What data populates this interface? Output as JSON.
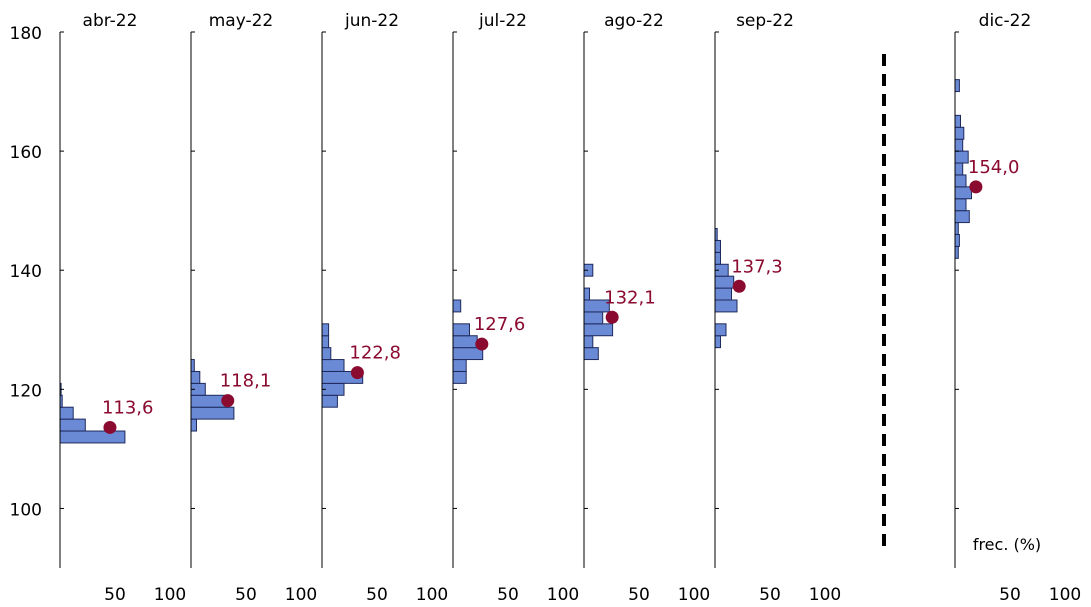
{
  "chart_data": {
    "type": "bar",
    "orientation": "horizontal",
    "y_axis": {
      "ylim": [
        90,
        180
      ],
      "ticks": [
        100,
        120,
        140,
        160,
        180
      ]
    },
    "x_axis": {
      "xlim": [
        0,
        100
      ],
      "ticks": [
        50,
        100
      ],
      "label": "frec. (%)"
    },
    "separator_before_panel": 6,
    "colors": {
      "bar_fill": "#6A8AD6",
      "bar_edge": "#1F2A5C",
      "marker": "#8B0A2F",
      "value_label": "#8B0A2F",
      "axis": "#000000",
      "separator": "#000000"
    },
    "panels": [
      {
        "title": "abr-22",
        "value": 113.6,
        "value_label": "113,6",
        "bars": [
          {
            "y0": 111,
            "y1": 113,
            "freq": 59
          },
          {
            "y0": 113,
            "y1": 115,
            "freq": 23
          },
          {
            "y0": 115,
            "y1": 117,
            "freq": 12
          },
          {
            "y0": 117,
            "y1": 119,
            "freq": 2
          },
          {
            "y0": 119,
            "y1": 121,
            "freq": 1
          }
        ]
      },
      {
        "title": "may-22",
        "value": 118.1,
        "value_label": "118,1",
        "bars": [
          {
            "y0": 113,
            "y1": 115,
            "freq": 5
          },
          {
            "y0": 115,
            "y1": 117,
            "freq": 39
          },
          {
            "y0": 117,
            "y1": 119,
            "freq": 34
          },
          {
            "y0": 119,
            "y1": 121,
            "freq": 13
          },
          {
            "y0": 121,
            "y1": 123,
            "freq": 8
          },
          {
            "y0": 123,
            "y1": 125,
            "freq": 3
          }
        ]
      },
      {
        "title": "jun-22",
        "value": 122.8,
        "value_label": "122,8",
        "bars": [
          {
            "y0": 117,
            "y1": 119,
            "freq": 14
          },
          {
            "y0": 119,
            "y1": 121,
            "freq": 20
          },
          {
            "y0": 121,
            "y1": 123,
            "freq": 37
          },
          {
            "y0": 123,
            "y1": 125,
            "freq": 20
          },
          {
            "y0": 125,
            "y1": 127,
            "freq": 8
          },
          {
            "y0": 127,
            "y1": 129,
            "freq": 6
          },
          {
            "y0": 129,
            "y1": 131,
            "freq": 6
          }
        ]
      },
      {
        "title": "jul-22",
        "value": 127.6,
        "value_label": "127,6",
        "bars": [
          {
            "y0": 121,
            "y1": 123,
            "freq": 12
          },
          {
            "y0": 123,
            "y1": 125,
            "freq": 12
          },
          {
            "y0": 125,
            "y1": 127,
            "freq": 27
          },
          {
            "y0": 127,
            "y1": 129,
            "freq": 22
          },
          {
            "y0": 129,
            "y1": 131,
            "freq": 15
          },
          {
            "y0": 131,
            "y1": 133,
            "freq": 0
          },
          {
            "y0": 133,
            "y1": 135,
            "freq": 7
          }
        ]
      },
      {
        "title": "ago-22",
        "value": 132.1,
        "value_label": "132,1",
        "bars": [
          {
            "y0": 125,
            "y1": 127,
            "freq": 13
          },
          {
            "y0": 127,
            "y1": 129,
            "freq": 8
          },
          {
            "y0": 129,
            "y1": 131,
            "freq": 26
          },
          {
            "y0": 131,
            "y1": 133,
            "freq": 17
          },
          {
            "y0": 133,
            "y1": 135,
            "freq": 23
          },
          {
            "y0": 135,
            "y1": 137,
            "freq": 5
          },
          {
            "y0": 137,
            "y1": 139,
            "freq": 0
          },
          {
            "y0": 139,
            "y1": 141,
            "freq": 8
          }
        ]
      },
      {
        "title": "sep-22",
        "value": 137.3,
        "value_label": "137,3",
        "bars": [
          {
            "y0": 127,
            "y1": 129,
            "freq": 5
          },
          {
            "y0": 129,
            "y1": 131,
            "freq": 10
          },
          {
            "y0": 131,
            "y1": 133,
            "freq": 0
          },
          {
            "y0": 133,
            "y1": 135,
            "freq": 20
          },
          {
            "y0": 135,
            "y1": 137,
            "freq": 15
          },
          {
            "y0": 137,
            "y1": 139,
            "freq": 17
          },
          {
            "y0": 139,
            "y1": 141,
            "freq": 12
          },
          {
            "y0": 141,
            "y1": 143,
            "freq": 5
          },
          {
            "y0": 143,
            "y1": 145,
            "freq": 5
          },
          {
            "y0": 145,
            "y1": 147,
            "freq": 2
          }
        ]
      },
      {
        "title": "dic-22",
        "value": 154.0,
        "value_label": "154,0",
        "bars": [
          {
            "y0": 142,
            "y1": 144,
            "freq": 3
          },
          {
            "y0": 144,
            "y1": 146,
            "freq": 4
          },
          {
            "y0": 146,
            "y1": 148,
            "freq": 3
          },
          {
            "y0": 148,
            "y1": 150,
            "freq": 13
          },
          {
            "y0": 150,
            "y1": 152,
            "freq": 10
          },
          {
            "y0": 152,
            "y1": 154,
            "freq": 15
          },
          {
            "y0": 154,
            "y1": 156,
            "freq": 10
          },
          {
            "y0": 156,
            "y1": 158,
            "freq": 7
          },
          {
            "y0": 158,
            "y1": 160,
            "freq": 12
          },
          {
            "y0": 160,
            "y1": 162,
            "freq": 7
          },
          {
            "y0": 162,
            "y1": 164,
            "freq": 8
          },
          {
            "y0": 164,
            "y1": 166,
            "freq": 5
          },
          {
            "y0": 166,
            "y1": 168,
            "freq": 0
          },
          {
            "y0": 168,
            "y1": 170,
            "freq": 0
          },
          {
            "y0": 170,
            "y1": 172,
            "freq": 4
          }
        ]
      }
    ]
  }
}
